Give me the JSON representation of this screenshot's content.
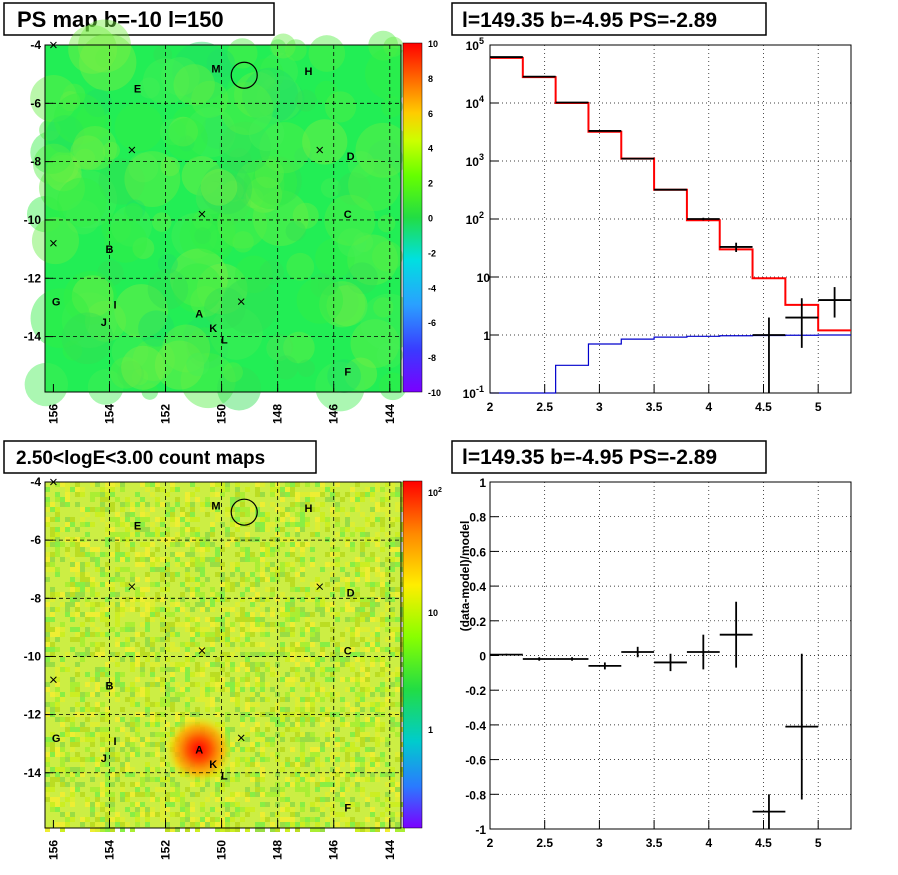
{
  "chart_data": [
    {
      "type": "heatmap",
      "title": "PS map b=-10 l=150",
      "x_ticks": [
        "156",
        "154",
        "152",
        "150",
        "148",
        "146",
        "144"
      ],
      "y_ticks": [
        "-4",
        "-6",
        "-8",
        "-10",
        "-12",
        "-14"
      ],
      "x_range": [
        156.3,
        143.6
      ],
      "y_range": [
        -15.9,
        -4.0
      ],
      "z_range": [
        -10,
        10
      ],
      "z_ticks": [
        "10",
        "8",
        "6",
        "4",
        "2",
        "0",
        "-2",
        "-4",
        "-6",
        "-8",
        "-10"
      ],
      "grid": true,
      "source_labels": [
        {
          "name": "M",
          "l": 150.2,
          "b": -4.8
        },
        {
          "name": "H",
          "l": 146.9,
          "b": -4.9
        },
        {
          "name": "E",
          "l": 153.0,
          "b": -5.5
        },
        {
          "name": "D",
          "l": 145.4,
          "b": -7.8
        },
        {
          "name": "C",
          "l": 145.5,
          "b": -9.8
        },
        {
          "name": "B",
          "l": 154.0,
          "b": -11.0
        },
        {
          "name": "G",
          "l": 155.9,
          "b": -12.8
        },
        {
          "name": "I",
          "l": 153.8,
          "b": -12.9
        },
        {
          "name": "J",
          "l": 154.2,
          "b": -13.5
        },
        {
          "name": "A",
          "l": 150.8,
          "b": -13.2
        },
        {
          "name": "K",
          "l": 150.3,
          "b": -13.7
        },
        {
          "name": "L",
          "l": 149.9,
          "b": -14.1
        },
        {
          "name": "F",
          "l": 145.5,
          "b": -15.2
        }
      ],
      "cross_markers": [
        {
          "l": 156.0,
          "b": -4.0
        },
        {
          "l": 153.2,
          "b": -7.6
        },
        {
          "l": 146.5,
          "b": -7.6
        },
        {
          "l": 150.7,
          "b": -9.8
        },
        {
          "l": 156.0,
          "b": -10.8
        },
        {
          "l": 149.3,
          "b": -12.8
        }
      ],
      "circle": {
        "l": 149.3,
        "b": -4.9
      }
    },
    {
      "type": "line",
      "title": "l=149.35 b=-4.95 PS=-2.89",
      "x_ticks": [
        "2",
        "2.5",
        "3",
        "3.5",
        "4",
        "4.5",
        "5"
      ],
      "xlim": [
        2.0,
        5.3
      ],
      "y_scale": "log",
      "ylim": [
        0.1,
        100000
      ],
      "y_ticks": [
        "10^-1",
        "1",
        "10",
        "10^2",
        "10^3",
        "10^4",
        "10^5"
      ],
      "grid": true,
      "series": [
        {
          "style": "step",
          "color": "#ff0000",
          "edges": [
            2.0,
            2.3,
            2.6,
            2.9,
            3.2,
            3.5,
            3.8,
            4.1,
            4.4,
            4.7,
            5.0,
            5.3
          ],
          "values": [
            60000,
            28000,
            10000,
            3200,
            1100,
            320,
            95,
            30,
            9.5,
            3.3,
            1.2
          ]
        },
        {
          "style": "step",
          "color": "#0000cc",
          "edges": [
            2.0,
            2.3,
            2.6,
            2.9,
            3.2,
            3.5,
            3.8,
            4.1,
            4.4,
            4.7,
            5.0,
            5.3
          ],
          "values": [
            0.1,
            0.1,
            0.3,
            0.7,
            0.85,
            0.92,
            0.95,
            0.97,
            0.98,
            0.99,
            1.0
          ]
        },
        {
          "style": "errorbar",
          "color": "#000000",
          "points": [
            {
              "x": 2.15,
              "y": 62000,
              "xerr": 0.15,
              "ylo": 62000,
              "yhi": 62000
            },
            {
              "x": 2.45,
              "y": 28500,
              "xerr": 0.15,
              "ylo": 28500,
              "yhi": 28500
            },
            {
              "x": 2.75,
              "y": 10200,
              "xerr": 0.15,
              "ylo": 10200,
              "yhi": 10200
            },
            {
              "x": 3.05,
              "y": 3300,
              "xerr": 0.15,
              "ylo": 3300,
              "yhi": 3300
            },
            {
              "x": 3.35,
              "y": 1100,
              "xerr": 0.15,
              "ylo": 1100,
              "yhi": 1100
            },
            {
              "x": 3.65,
              "y": 320,
              "xerr": 0.15,
              "ylo": 320,
              "yhi": 320
            },
            {
              "x": 3.95,
              "y": 100,
              "xerr": 0.15,
              "ylo": 95,
              "yhi": 105
            },
            {
              "x": 4.25,
              "y": 33,
              "xerr": 0.15,
              "ylo": 27,
              "yhi": 39
            },
            {
              "x": 4.55,
              "y": 1,
              "xerr": 0.15,
              "ylo": 0.1,
              "yhi": 2.0
            },
            {
              "x": 4.85,
              "y": 2,
              "xerr": 0.15,
              "ylo": 0.6,
              "yhi": 4.3
            },
            {
              "x": 5.15,
              "y": 4,
              "xerr": 0.15,
              "ylo": 2.0,
              "yhi": 6.7
            }
          ]
        }
      ]
    },
    {
      "type": "heatmap",
      "title": "2.50<logE<3.00 count maps",
      "x_ticks": [
        "156",
        "154",
        "152",
        "150",
        "148",
        "146",
        "144"
      ],
      "y_ticks": [
        "-4",
        "-6",
        "-8",
        "-10",
        "-12",
        "-14"
      ],
      "x_range": [
        156.3,
        143.6
      ],
      "y_range": [
        -15.9,
        -4.0
      ],
      "z_scale": "log",
      "z_ticks": [
        "10^2",
        "10",
        "1"
      ],
      "grid": true,
      "hotspot": {
        "name": "A",
        "l": 150.8,
        "b": -13.2
      }
    },
    {
      "type": "scatter",
      "title": "l=149.35 b=-4.95 PS=-2.89",
      "ylabel": "(data-model)/model",
      "x_ticks": [
        "2",
        "2.5",
        "3",
        "3.5",
        "4",
        "4.5",
        "5"
      ],
      "xlim": [
        2.0,
        5.3
      ],
      "ylim": [
        -1.0,
        1.0
      ],
      "y_ticks": [
        "1",
        "0.8",
        "0.6",
        "0.4",
        "0.2",
        "0",
        "-0.2",
        "-0.4",
        "-0.6",
        "-0.8",
        "-1"
      ],
      "grid": true,
      "points": [
        {
          "x": 2.15,
          "y": 0.005,
          "xerr": 0.15,
          "yerr": 0.005
        },
        {
          "x": 2.45,
          "y": -0.02,
          "xerr": 0.15,
          "yerr": 0.01
        },
        {
          "x": 2.75,
          "y": -0.02,
          "xerr": 0.15,
          "yerr": 0.01
        },
        {
          "x": 3.05,
          "y": -0.06,
          "xerr": 0.15,
          "yerr": 0.02
        },
        {
          "x": 3.35,
          "y": 0.02,
          "xerr": 0.15,
          "yerr": 0.03
        },
        {
          "x": 3.65,
          "y": -0.04,
          "xerr": 0.15,
          "yerr": 0.05
        },
        {
          "x": 3.95,
          "y": 0.02,
          "xerr": 0.15,
          "yerr": 0.1
        },
        {
          "x": 4.25,
          "y": 0.12,
          "xerr": 0.15,
          "yerr": 0.19
        },
        {
          "x": 4.55,
          "y": -0.9,
          "xerr": 0.15,
          "yerr": 0.1
        },
        {
          "x": 4.85,
          "y": -0.41,
          "xerr": 0.15,
          "yerr": 0.42
        }
      ]
    }
  ]
}
